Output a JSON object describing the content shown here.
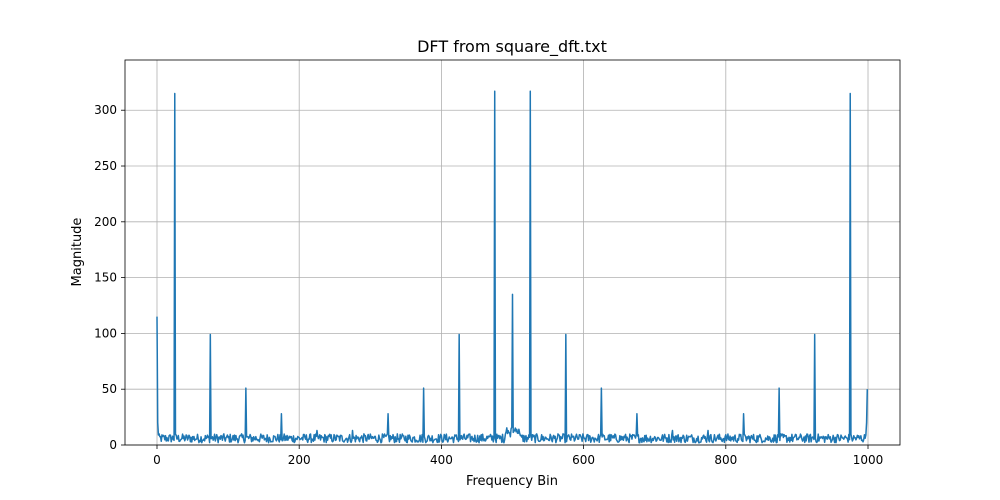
{
  "chart_data": {
    "type": "line",
    "title": "DFT from square_dft.txt",
    "xlabel": "Frequency Bin",
    "ylabel": "Magnitude",
    "xlim": [
      -45,
      1045
    ],
    "ylim": [
      0,
      345
    ],
    "xticks": [
      0,
      200,
      400,
      600,
      800,
      1000
    ],
    "yticks": [
      0,
      50,
      100,
      150,
      200,
      250,
      300
    ],
    "grid": true,
    "line_color": "#1f77b4",
    "series": [
      {
        "baseline": 5,
        "noise_range": [
          2,
          10
        ],
        "n_bins": 1000,
        "peaks": [
          {
            "x": 0,
            "y": 115
          },
          {
            "x": 25,
            "y": 315
          },
          {
            "x": 75,
            "y": 99
          },
          {
            "x": 125,
            "y": 51
          },
          {
            "x": 175,
            "y": 28
          },
          {
            "x": 225,
            "y": 13
          },
          {
            "x": 275,
            "y": 13
          },
          {
            "x": 325,
            "y": 28
          },
          {
            "x": 375,
            "y": 51
          },
          {
            "x": 425,
            "y": 99
          },
          {
            "x": 475,
            "y": 317
          },
          {
            "x": 500,
            "y": 135
          },
          {
            "x": 525,
            "y": 317
          },
          {
            "x": 575,
            "y": 99
          },
          {
            "x": 625,
            "y": 51
          },
          {
            "x": 675,
            "y": 28
          },
          {
            "x": 725,
            "y": 13
          },
          {
            "x": 775,
            "y": 13
          },
          {
            "x": 825,
            "y": 28
          },
          {
            "x": 875,
            "y": 51
          },
          {
            "x": 925,
            "y": 99
          },
          {
            "x": 975,
            "y": 315
          },
          {
            "x": 999,
            "y": 50
          }
        ]
      }
    ]
  }
}
